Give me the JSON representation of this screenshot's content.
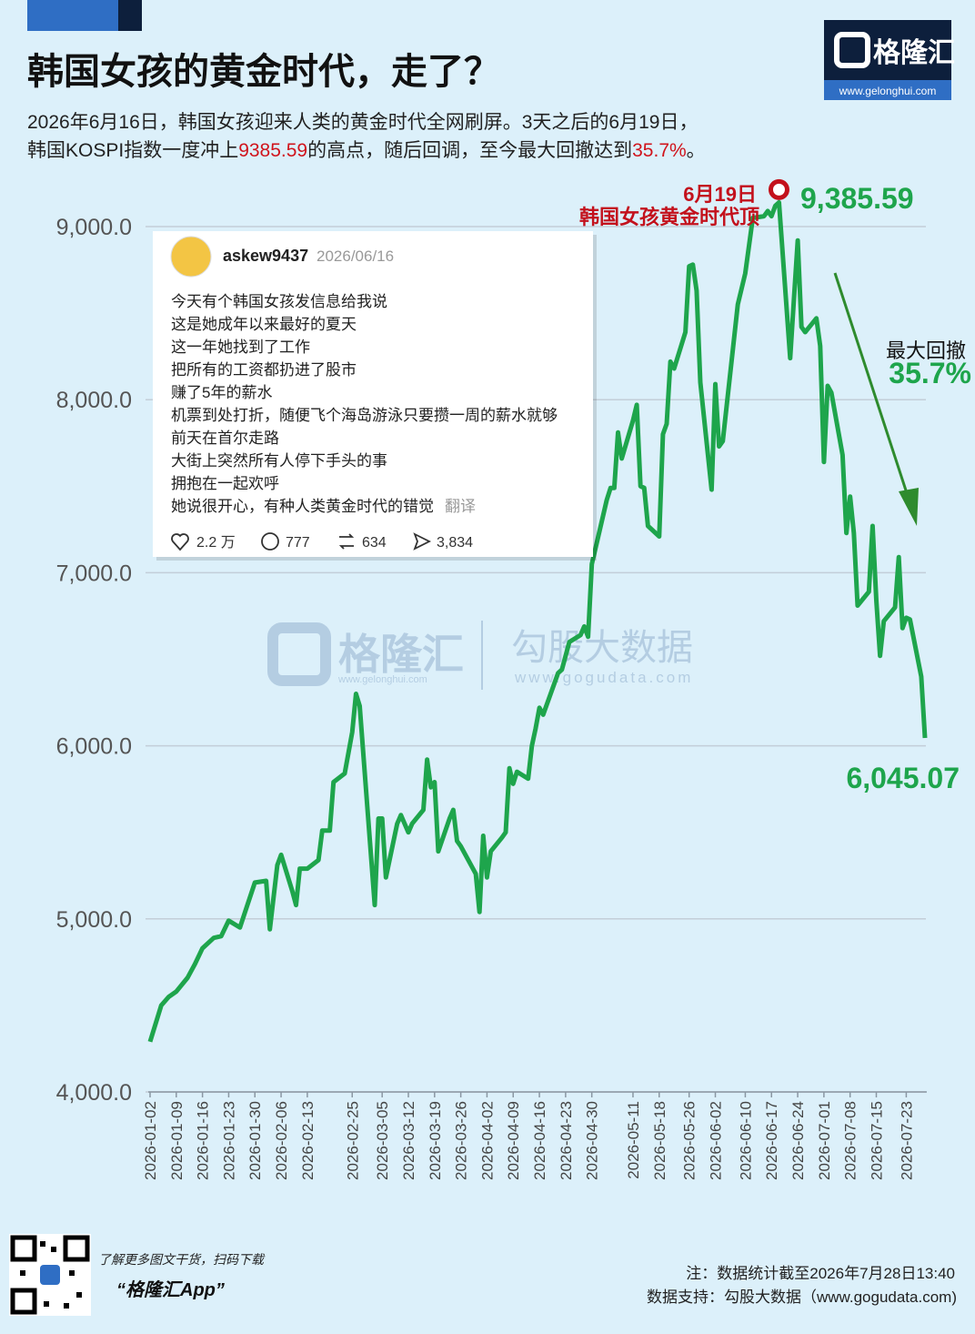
{
  "header": {
    "title": "韩国女孩的黄金时代，走了？",
    "subtitle_line1": "2026年6月16日，韩国女孩迎来人类的黄金时代全网刷屏。3天之后的6月19日，",
    "subtitle_parts": [
      "韩国KOSPI指数一度冲上",
      "9385.59",
      "的高点，随后回调，至今最大回撤达到",
      "35.7%",
      "。"
    ]
  },
  "logo": {
    "name": "格隆汇",
    "url": "www.gelonghui.com"
  },
  "chart_data": {
    "type": "line",
    "color": "#1ea54c",
    "grid": true,
    "x": [
      "2026-01-02",
      "2026-01-05",
      "2026-01-07",
      "2026-01-09",
      "2026-01-12",
      "2026-01-14",
      "2026-01-16",
      "2026-01-19",
      "2026-01-21",
      "2026-01-23",
      "2026-01-26",
      "2026-01-28",
      "2026-01-30",
      "2026-02-02",
      "2026-02-03",
      "2026-02-05",
      "2026-02-06",
      "2026-02-09",
      "2026-02-10",
      "2026-02-11",
      "2026-02-13",
      "2026-02-16",
      "2026-02-17",
      "2026-02-19",
      "2026-02-20",
      "2026-02-23",
      "2026-02-25",
      "2026-02-26",
      "2026-02-27",
      "2026-03-03",
      "2026-03-04",
      "2026-03-05",
      "2026-03-06",
      "2026-03-09",
      "2026-03-10",
      "2026-03-12",
      "2026-03-13",
      "2026-03-16",
      "2026-03-17",
      "2026-03-18",
      "2026-03-19",
      "2026-03-20",
      "2026-03-23",
      "2026-03-24",
      "2026-03-25",
      "2026-03-26",
      "2026-03-30",
      "2026-03-31",
      "2026-04-01",
      "2026-04-02",
      "2026-04-03",
      "2026-04-06",
      "2026-04-07",
      "2026-04-08",
      "2026-04-09",
      "2026-04-10",
      "2026-04-13",
      "2026-04-14",
      "2026-04-15",
      "2026-04-16",
      "2026-04-17",
      "2026-04-20",
      "2026-04-21",
      "2026-04-22",
      "2026-04-23",
      "2026-04-24",
      "2026-04-27",
      "2026-04-28",
      "2026-04-29",
      "2026-04-30",
      "2026-05-04",
      "2026-05-05",
      "2026-05-06",
      "2026-05-07",
      "2026-05-08",
      "2026-05-11",
      "2026-05-12",
      "2026-05-13",
      "2026-05-14",
      "2026-05-15",
      "2026-05-18",
      "2026-05-19",
      "2026-05-20",
      "2026-05-21",
      "2026-05-22",
      "2026-05-25",
      "2026-05-26",
      "2026-05-27",
      "2026-05-28",
      "2026-05-29",
      "2026-06-01",
      "2026-06-02",
      "2026-06-03",
      "2026-06-04",
      "2026-06-08",
      "2026-06-10",
      "2026-06-12",
      "2026-06-15",
      "2026-06-16",
      "2026-06-17",
      "2026-06-18",
      "2026-06-19",
      "2026-06-22",
      "2026-06-23",
      "2026-06-24",
      "2026-06-25",
      "2026-06-26",
      "2026-06-29",
      "2026-06-30",
      "2026-07-01",
      "2026-07-02",
      "2026-07-03",
      "2026-07-06",
      "2026-07-07",
      "2026-07-08",
      "2026-07-09",
      "2026-07-10",
      "2026-07-13",
      "2026-07-14",
      "2026-07-15",
      "2026-07-16",
      "2026-07-17",
      "2026-07-20",
      "2026-07-21",
      "2026-07-22",
      "2026-07-23",
      "2026-07-24",
      "2026-07-27",
      "2026-07-28"
    ],
    "values": [
      4290,
      4500,
      4550,
      4580,
      4660,
      4740,
      4830,
      4890,
      4900,
      4990,
      4950,
      5080,
      5210,
      5220,
      4940,
      5310,
      5370,
      5160,
      5080,
      5290,
      5290,
      5340,
      5510,
      5510,
      5790,
      5840,
      6080,
      6300,
      6230,
      5080,
      5580,
      5580,
      5240,
      5550,
      5600,
      5500,
      5550,
      5630,
      5920,
      5760,
      5790,
      5390,
      5580,
      5630,
      5450,
      5420,
      5260,
      5040,
      5480,
      5240,
      5390,
      5470,
      5500,
      5870,
      5780,
      5850,
      5810,
      6000,
      6100,
      6220,
      6180,
      6360,
      6420,
      6440,
      6520,
      6600,
      6640,
      6690,
      6630,
      7050,
      7420,
      7490,
      7490,
      7810,
      7660,
      7880,
      7970,
      7500,
      7490,
      7270,
      7210,
      7800,
      7860,
      8220,
      8180,
      8390,
      8770,
      8780,
      8630,
      8100,
      7480,
      8090,
      7730,
      7760,
      8550,
      8730,
      9050,
      9060,
      9090,
      9060,
      9120,
      9140,
      8240,
      8580,
      8920,
      8420,
      8390,
      8470,
      8310,
      7640,
      8080,
      8040,
      7680,
      7230,
      7440,
      7230,
      6810,
      6890,
      7270,
      6840,
      6520,
      6720,
      6800,
      7090,
      6680,
      6740,
      6730,
      6400,
      6045.07
    ],
    "xlim": [
      "2026-01-02",
      "2026-07-28"
    ],
    "xticks": [
      "2026-01-02",
      "2026-01-09",
      "2026-01-16",
      "2026-01-23",
      "2026-01-30",
      "2026-02-06",
      "2026-02-13",
      "2026-02-25",
      "2026-03-05",
      "2026-03-12",
      "2026-03-19",
      "2026-03-26",
      "2026-04-02",
      "2026-04-09",
      "2026-04-16",
      "2026-04-23",
      "2026-04-30",
      "2026-05-11",
      "2026-05-18",
      "2026-05-26",
      "2026-06-02",
      "2026-06-10",
      "2026-06-17",
      "2026-06-24",
      "2026-07-01",
      "2026-07-08",
      "2026-07-15",
      "2026-07-23"
    ],
    "ylim": [
      4000,
      9000
    ],
    "yticks": [
      {
        "value": 4000,
        "label": "4,000.0"
      },
      {
        "value": 5000,
        "label": "5,000.0"
      },
      {
        "value": 6000,
        "label": "6,000.0"
      },
      {
        "value": 7000,
        "label": "7,000.0"
      },
      {
        "value": 8000,
        "label": "8,000.0"
      },
      {
        "value": 9000,
        "label": "9,000.0"
      }
    ],
    "annotations": {
      "peak_date": "6月19日",
      "peak_text": "韩国女孩黄金时代顶",
      "peak_value": "9,385.59",
      "drawdown_title": "最大回撤",
      "drawdown_value": "35.7%",
      "last_value": "6,045.07"
    }
  },
  "tweet": {
    "user": "askew9437",
    "date": "2026/06/16",
    "lines": [
      "今天有个韩国女孩发信息给我说",
      "这是她成年以来最好的夏天",
      "这一年她找到了工作",
      "把所有的工资都扔进了股市",
      "赚了5年的薪水",
      "机票到处打折，随便飞个海岛游泳只要攒一周的薪水就够",
      "前天在首尔走路",
      "大街上突然所有人停下手头的事",
      "拥抱在一起欢呼",
      "她说很开心，有种人类黄金时代的错觉"
    ],
    "translate": "翻译",
    "stats": [
      "2.2 万",
      "777",
      "634",
      "3,834"
    ]
  },
  "watermark": {
    "brand": "格隆汇",
    "brand_url": "www.gelonghui.com",
    "data_brand": "勾股大数据",
    "data_url": "www.gogudata.com"
  },
  "footer": {
    "promo": "了解更多图文干货，扫码下载",
    "app": "“格隆汇App”",
    "note": "注：数据统计截至2026年7月28日13:40",
    "source": "数据支持：勾股大数据（www.gogudata.com)"
  }
}
